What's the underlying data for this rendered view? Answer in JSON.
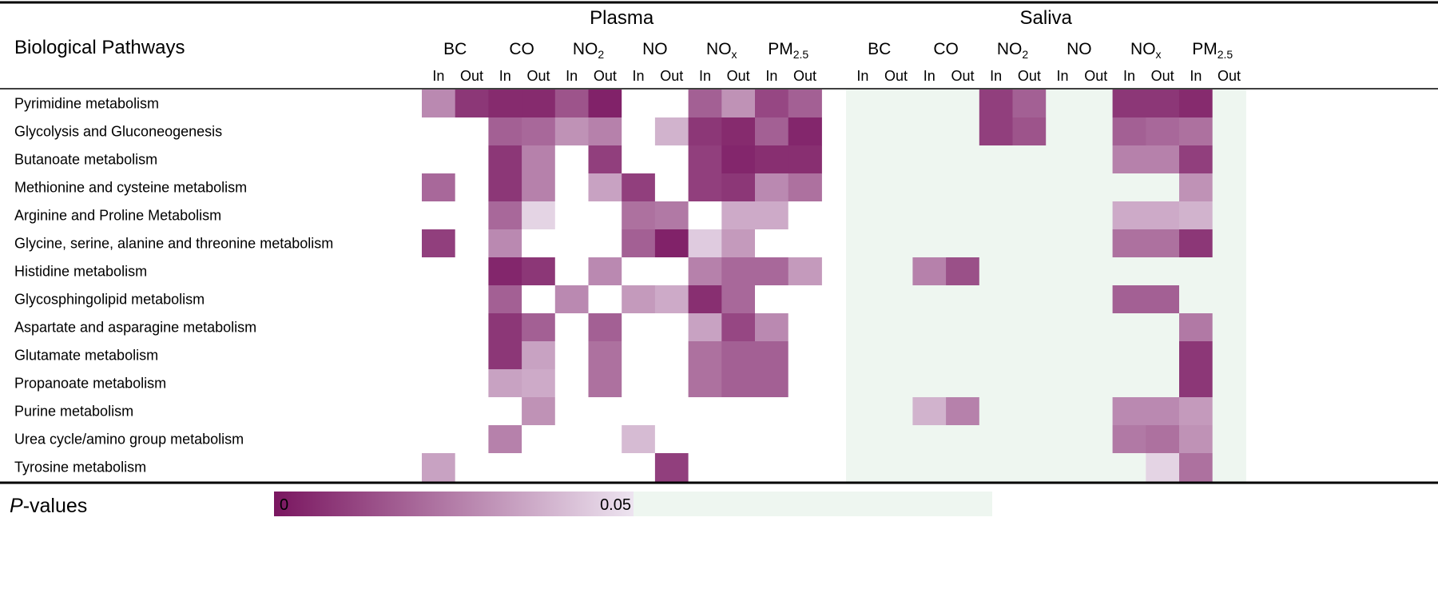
{
  "chart_data": {
    "type": "heatmap",
    "row_header": "Biological Pathways",
    "groups": [
      {
        "name": "Plasma",
        "pollutants": [
          {
            "name": "BC",
            "sub": ""
          },
          {
            "name": "CO",
            "sub": ""
          },
          {
            "name": "NO",
            "sub": "2"
          },
          {
            "name": "NO",
            "sub": ""
          },
          {
            "name": "NO",
            "sub": "x"
          },
          {
            "name": "PM",
            "sub": "2.5"
          }
        ]
      },
      {
        "name": "Saliva",
        "pollutants": [
          {
            "name": "BC",
            "sub": ""
          },
          {
            "name": "CO",
            "sub": ""
          },
          {
            "name": "NO",
            "sub": "2"
          },
          {
            "name": "NO",
            "sub": ""
          },
          {
            "name": "NO",
            "sub": "x"
          },
          {
            "name": "PM",
            "sub": "2.5"
          }
        ]
      }
    ],
    "exposures": [
      "In",
      "Out"
    ],
    "rows": [
      "Pyrimidine metabolism",
      "Glycolysis and Gluconeogenesis",
      "Butanoate metabolism",
      "Methionine and cysteine metabolism",
      "Arginine and Proline Metabolism",
      "Glycine, serine, alanine and threonine metabolism",
      "Histidine metabolism",
      "Glycosphingolipid metabolism",
      "Aspartate and asparagine metabolism",
      "Glutamate metabolism",
      "Propanoate metabolism",
      "Purine metabolism",
      "Urea cycle/amino group metabolism",
      "Tyrosine metabolism"
    ],
    "values": [
      [
        0.028,
        0.008,
        0.005,
        0.005,
        0.015,
        0.003,
        null,
        null,
        0.018,
        0.03,
        0.012,
        0.018,
        null,
        null,
        null,
        null,
        0.01,
        0.018,
        null,
        null,
        0.008,
        0.008,
        0.005,
        null
      ],
      [
        null,
        null,
        0.018,
        0.02,
        0.03,
        0.026,
        null,
        0.038,
        0.008,
        0.005,
        0.018,
        0.004,
        null,
        null,
        null,
        null,
        0.01,
        0.015,
        null,
        null,
        0.018,
        0.02,
        0.022,
        null
      ],
      [
        null,
        null,
        0.008,
        0.026,
        null,
        0.01,
        null,
        null,
        0.01,
        0.004,
        0.006,
        0.006,
        null,
        null,
        null,
        null,
        null,
        null,
        null,
        null,
        0.026,
        0.026,
        0.01,
        null
      ],
      [
        0.02,
        null,
        0.008,
        0.026,
        null,
        0.034,
        0.01,
        null,
        0.01,
        0.008,
        0.028,
        0.022,
        null,
        null,
        null,
        null,
        null,
        null,
        null,
        null,
        null,
        null,
        0.03,
        null
      ],
      [
        null,
        null,
        0.02,
        0.046,
        null,
        null,
        0.022,
        0.024,
        null,
        0.036,
        0.036,
        null,
        null,
        null,
        null,
        null,
        null,
        null,
        null,
        null,
        0.036,
        0.036,
        0.038,
        null
      ],
      [
        0.01,
        null,
        0.028,
        null,
        null,
        null,
        0.018,
        0.003,
        0.044,
        0.032,
        null,
        null,
        null,
        null,
        null,
        null,
        null,
        null,
        null,
        null,
        0.022,
        0.022,
        0.008,
        null
      ],
      [
        null,
        null,
        0.004,
        0.008,
        null,
        0.028,
        null,
        null,
        0.026,
        0.02,
        0.02,
        0.032,
        null,
        null,
        0.026,
        0.014,
        null,
        null,
        null,
        null,
        null,
        null,
        null,
        null
      ],
      [
        null,
        null,
        0.018,
        null,
        0.028,
        null,
        0.032,
        0.036,
        0.006,
        0.02,
        null,
        null,
        null,
        null,
        null,
        null,
        null,
        null,
        null,
        null,
        0.018,
        0.018,
        null,
        null
      ],
      [
        null,
        null,
        0.008,
        0.018,
        null,
        0.018,
        null,
        null,
        0.034,
        0.012,
        0.028,
        null,
        null,
        null,
        null,
        null,
        null,
        null,
        null,
        null,
        null,
        null,
        0.024,
        null
      ],
      [
        null,
        null,
        0.008,
        0.034,
        null,
        0.022,
        null,
        null,
        0.022,
        0.018,
        0.018,
        null,
        null,
        null,
        null,
        null,
        null,
        null,
        null,
        null,
        null,
        null,
        0.008,
        null
      ],
      [
        null,
        null,
        0.034,
        0.036,
        null,
        0.022,
        null,
        null,
        0.022,
        0.018,
        0.018,
        null,
        null,
        null,
        null,
        null,
        null,
        null,
        null,
        null,
        null,
        null,
        0.008,
        null
      ],
      [
        null,
        null,
        null,
        0.03,
        null,
        null,
        null,
        null,
        null,
        null,
        null,
        null,
        null,
        null,
        0.038,
        0.026,
        null,
        null,
        null,
        null,
        0.028,
        0.028,
        0.032,
        null
      ],
      [
        null,
        null,
        0.026,
        null,
        null,
        null,
        0.04,
        null,
        null,
        null,
        null,
        null,
        null,
        null,
        null,
        null,
        null,
        null,
        null,
        null,
        0.024,
        0.022,
        0.03,
        null
      ],
      [
        0.034,
        null,
        null,
        null,
        null,
        null,
        null,
        0.01,
        null,
        null,
        null,
        null,
        null,
        null,
        null,
        null,
        null,
        null,
        null,
        null,
        null,
        0.046,
        0.022,
        null
      ]
    ],
    "legend": {
      "label_prefix": "P",
      "label_suffix": "-values",
      "min_label": "0",
      "max_label": "0.05",
      "range": [
        0,
        0.05
      ]
    },
    "colors": {
      "low": "#7a1660",
      "high": "#ede4f0",
      "nonsig": "#eef6f0",
      "plasma_blank": "#ffffff"
    }
  }
}
